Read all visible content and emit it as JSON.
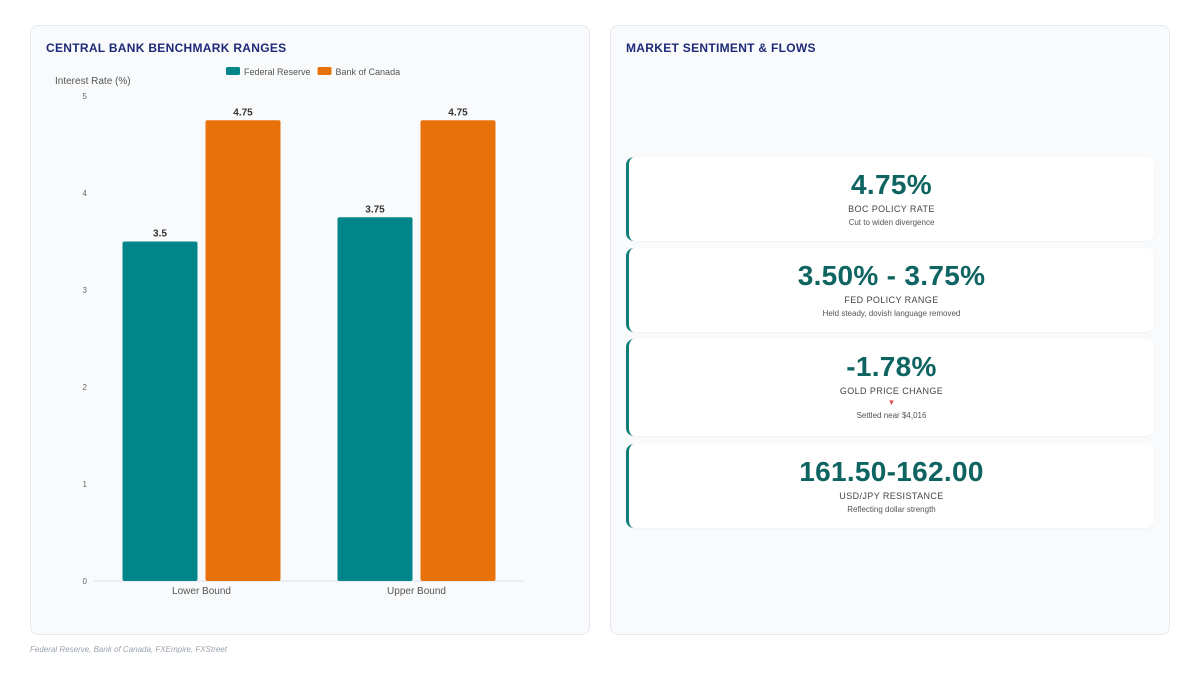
{
  "left_panel": {
    "title": "CENTRAL BANK BENCHMARK RANGES"
  },
  "right_panel": {
    "title": "MARKET SENTIMENT & FLOWS"
  },
  "chart_data": {
    "type": "bar",
    "title": "CENTRAL BANK BENCHMARK RANGES",
    "ylabel": "Interest Rate (%)",
    "xlabel": "",
    "categories": [
      "Lower Bound",
      "Upper Bound"
    ],
    "series": [
      {
        "name": "Federal Reserve",
        "values": [
          3.5,
          3.75
        ],
        "color": "#00858a"
      },
      {
        "name": "Bank of Canada",
        "values": [
          4.75,
          4.75
        ],
        "color": "#e8710a"
      }
    ],
    "data_labels": [
      [
        "3.5",
        "3.75"
      ],
      [
        "4.75",
        "4.75"
      ]
    ],
    "ylim": [
      0,
      5
    ],
    "yticks": [
      "0",
      "1",
      "2",
      "3",
      "4",
      "5"
    ],
    "legend_position": "top-center",
    "grid": false
  },
  "kpis": [
    {
      "value": "4.75%",
      "label": "BOC POLICY RATE",
      "sub": "Cut to widen divergence",
      "arrow": ""
    },
    {
      "value": "3.50% - 3.75%",
      "label": "FED POLICY RANGE",
      "sub": "Held steady, dovish language removed",
      "arrow": ""
    },
    {
      "value": "-1.78%",
      "label": "GOLD PRICE CHANGE",
      "sub": "Settled near $4,016",
      "arrow": "▼"
    },
    {
      "value": "161.50-162.00",
      "label": "USD/JPY RESISTANCE",
      "sub": "Reflecting dollar strength",
      "arrow": ""
    }
  ],
  "footer": {
    "source": "Federal Reserve, Bank of Canada, FXEmpire, FXStreet"
  }
}
